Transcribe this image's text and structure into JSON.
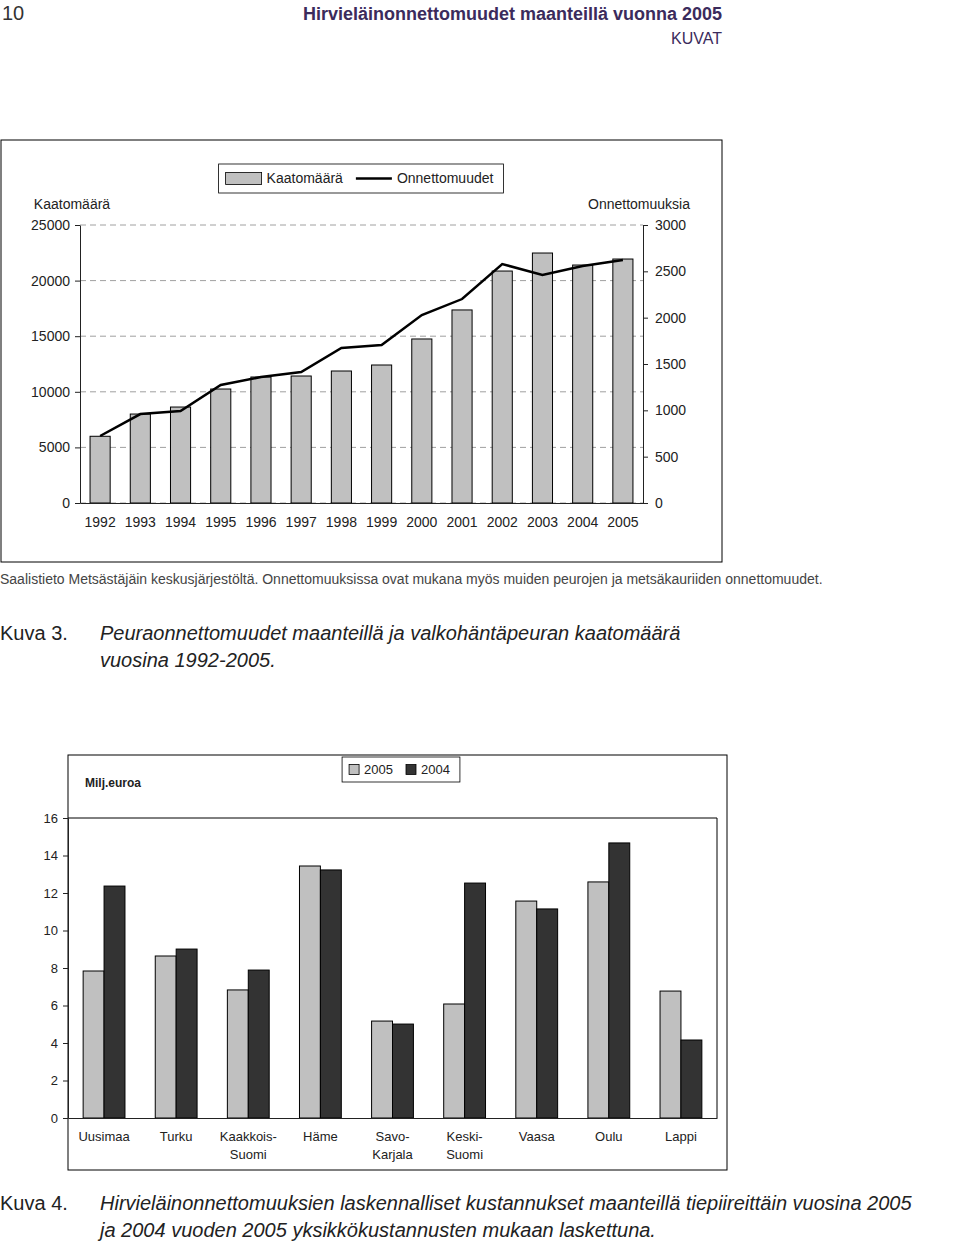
{
  "page": {
    "number": "10",
    "title": "Hirvieläinonnettomuudet maanteillä vuonna 2005",
    "section": "KUVAT"
  },
  "chart_data": [
    {
      "type": "bar",
      "figure_label": "Kuva 3.",
      "title": "Peuraonnettomuudet maanteillä ja valkohäntäpeuran kaatomäärä vuosina 1992-2005.",
      "note": "Saalistieto Metsästäjäin keskusjärjestöltä. Onnettomuuksissa ovat mukana myös muiden peurojen ja metsäkauriiden onnettomuudet.",
      "categories": [
        "1992",
        "1993",
        "1994",
        "1995",
        "1996",
        "1997",
        "1998",
        "1999",
        "2000",
        "2001",
        "2002",
        "2003",
        "2004",
        "2005"
      ],
      "series": [
        {
          "name": "Kaatomäärä",
          "type": "bar",
          "color": "#c0c0c0",
          "values": [
            6000,
            8000,
            8630,
            10250,
            11330,
            11420,
            11870,
            12410,
            14750,
            17360,
            20860,
            22480,
            21400,
            21940
          ]
        },
        {
          "name": "Onnettomuudet",
          "type": "line",
          "color": "#000000",
          "axis": "y2",
          "values": [
            723,
            960,
            993,
            1273,
            1360,
            1414,
            1673,
            1705,
            2029,
            2201,
            2579,
            2460,
            2558,
            2622
          ]
        }
      ],
      "y_label": "Kaatomäärä",
      "y2_label": "Onnettomuuksia",
      "ylim": [
        0,
        25000
      ],
      "yticks": [
        0,
        5000,
        10000,
        15000,
        20000,
        25000
      ],
      "y2lim": [
        0,
        3000
      ],
      "y2ticks": [
        0,
        500,
        1000,
        1500,
        2000,
        2500,
        3000
      ],
      "grid": true,
      "legend": "top"
    },
    {
      "type": "bar",
      "figure_label": "Kuva 4.",
      "title": "Hirvieläinonnettomuuksien laskennalliset kustannukset maanteillä tiepiireittäin vuosina 2005 ja 2004 vuoden 2005 yksikkökustannusten mukaan laskettuna.",
      "categories": [
        "Uusimaa",
        "Turku",
        "Kaakkois-\nSuomi",
        "Häme",
        "Savo-\nKarjala",
        "Keski-\nSuomi",
        "Vaasa",
        "Oulu",
        "Lappi"
      ],
      "series": [
        {
          "name": "2005",
          "color": "#c0c0c0",
          "values": [
            7.84,
            8.64,
            6.83,
            13.44,
            5.17,
            6.08,
            11.57,
            12.59,
            6.77
          ]
        },
        {
          "name": "2004",
          "color": "#333333",
          "values": [
            12.37,
            9.01,
            7.89,
            13.23,
            5.01,
            12.53,
            11.15,
            14.67,
            4.16
          ]
        }
      ],
      "y_label": "Milj.euroa",
      "ylim": [
        0,
        16
      ],
      "yticks": [
        0,
        2,
        4,
        6,
        8,
        10,
        12,
        14,
        16
      ],
      "grid": false,
      "legend": "top"
    }
  ]
}
